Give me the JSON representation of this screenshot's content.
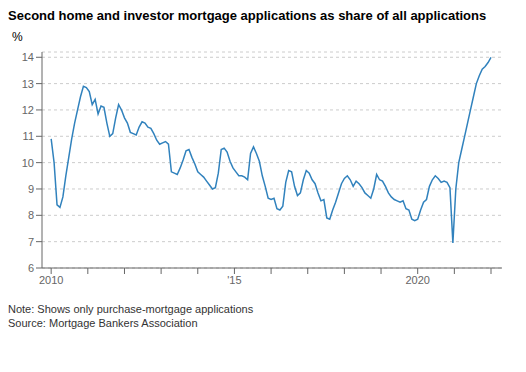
{
  "chart_data": {
    "type": "line",
    "title": "Second home and investor mortgage applications as share of all applications",
    "ylabel": "%",
    "note": "Note: Shows only purchase-mortgage applications",
    "source": "Source: Mortgage Bankers Association",
    "grid": "y",
    "xlim": [
      2009.75,
      2022.3
    ],
    "xticks": [
      2010,
      {
        "value": 2011,
        "label": null
      },
      {
        "value": 2012,
        "label": null
      },
      {
        "value": 2013,
        "label": null
      },
      {
        "value": 2014,
        "label": null
      },
      {
        "value": 2015,
        "label": "'15"
      },
      {
        "value": 2016,
        "label": null
      },
      {
        "value": 2017,
        "label": null
      },
      {
        "value": 2018,
        "label": null
      },
      {
        "value": 2019,
        "label": null
      },
      2020,
      {
        "value": 2021,
        "label": null
      },
      {
        "value": 2022,
        "label": null
      }
    ],
    "ylim": [
      6,
      14.2
    ],
    "yticks": [
      6,
      7,
      8,
      9,
      10,
      11,
      12,
      13,
      14
    ],
    "x": [
      2010,
      2010.08,
      2010.16,
      2010.24,
      2010.32,
      2010.4,
      2010.48,
      2010.56,
      2010.64,
      2010.72,
      2010.8,
      2010.88,
      2010.96,
      2011.04,
      2011.12,
      2011.2,
      2011.28,
      2011.36,
      2011.44,
      2011.52,
      2011.6,
      2011.68,
      2011.76,
      2011.84,
      2011.92,
      2012,
      2012.08,
      2012.16,
      2012.24,
      2012.32,
      2012.4,
      2012.48,
      2012.56,
      2012.64,
      2012.72,
      2012.8,
      2012.88,
      2012.96,
      2013.04,
      2013.12,
      2013.2,
      2013.28,
      2013.36,
      2013.44,
      2013.52,
      2013.6,
      2013.68,
      2013.76,
      2013.84,
      2013.92,
      2014,
      2014.08,
      2014.16,
      2014.24,
      2014.32,
      2014.4,
      2014.48,
      2014.56,
      2014.64,
      2014.72,
      2014.8,
      2014.88,
      2014.96,
      2015.04,
      2015.12,
      2015.2,
      2015.28,
      2015.36,
      2015.44,
      2015.52,
      2015.6,
      2015.68,
      2015.76,
      2015.84,
      2015.92,
      2016,
      2016.08,
      2016.16,
      2016.24,
      2016.32,
      2016.4,
      2016.48,
      2016.56,
      2016.64,
      2016.72,
      2016.8,
      2016.88,
      2016.96,
      2017.04,
      2017.12,
      2017.2,
      2017.28,
      2017.36,
      2017.44,
      2017.52,
      2017.6,
      2017.68,
      2017.76,
      2017.84,
      2017.92,
      2018,
      2018.08,
      2018.16,
      2018.24,
      2018.32,
      2018.4,
      2018.48,
      2018.56,
      2018.64,
      2018.72,
      2018.8,
      2018.88,
      2018.96,
      2019.04,
      2019.12,
      2019.2,
      2019.28,
      2019.36,
      2019.44,
      2019.52,
      2019.6,
      2019.68,
      2019.76,
      2019.84,
      2019.92,
      2020,
      2020.08,
      2020.16,
      2020.24,
      2020.32,
      2020.4,
      2020.48,
      2020.56,
      2020.64,
      2020.72,
      2020.8,
      2020.88,
      2020.96,
      2021.04,
      2021.12,
      2021.2,
      2021.28,
      2021.36,
      2021.44,
      2021.52,
      2021.6,
      2021.68,
      2021.76,
      2021.84,
      2021.92,
      2022
    ],
    "values": [
      10.9,
      10.0,
      8.4,
      8.3,
      8.7,
      9.5,
      10.2,
      10.9,
      11.5,
      12.0,
      12.5,
      12.9,
      12.85,
      12.7,
      12.2,
      12.4,
      11.85,
      12.15,
      12.1,
      11.5,
      11.0,
      11.1,
      11.7,
      12.2,
      12.0,
      11.7,
      11.5,
      11.15,
      11.1,
      11.05,
      11.35,
      11.55,
      11.5,
      11.35,
      11.3,
      11.1,
      10.85,
      10.7,
      10.75,
      10.8,
      10.7,
      9.65,
      9.6,
      9.55,
      9.8,
      10.1,
      10.45,
      10.5,
      10.2,
      9.95,
      9.65,
      9.55,
      9.45,
      9.3,
      9.15,
      9.0,
      9.05,
      9.6,
      10.5,
      10.55,
      10.4,
      10.05,
      9.8,
      9.65,
      9.5,
      9.5,
      9.45,
      9.35,
      10.35,
      10.6,
      10.35,
      10.05,
      9.5,
      9.1,
      8.65,
      8.6,
      8.65,
      8.25,
      8.2,
      8.35,
      9.25,
      9.7,
      9.65,
      9.1,
      8.75,
      8.85,
      9.35,
      9.7,
      9.6,
      9.35,
      9.2,
      8.85,
      8.55,
      8.6,
      7.9,
      7.85,
      8.2,
      8.5,
      8.85,
      9.2,
      9.4,
      9.5,
      9.35,
      9.1,
      9.3,
      9.2,
      9.05,
      8.85,
      8.75,
      8.65,
      9.0,
      9.55,
      9.35,
      9.3,
      9.1,
      8.85,
      8.7,
      8.6,
      8.55,
      8.5,
      8.55,
      8.25,
      8.2,
      7.85,
      7.8,
      7.85,
      8.2,
      8.5,
      8.6,
      9.1,
      9.35,
      9.5,
      9.4,
      9.25,
      9.3,
      9.25,
      9.05,
      6.95,
      9.0,
      10.0,
      10.5,
      11.0,
      11.5,
      12.0,
      12.5,
      13.0,
      13.3,
      13.55,
      13.65,
      13.8,
      14.0
    ]
  }
}
